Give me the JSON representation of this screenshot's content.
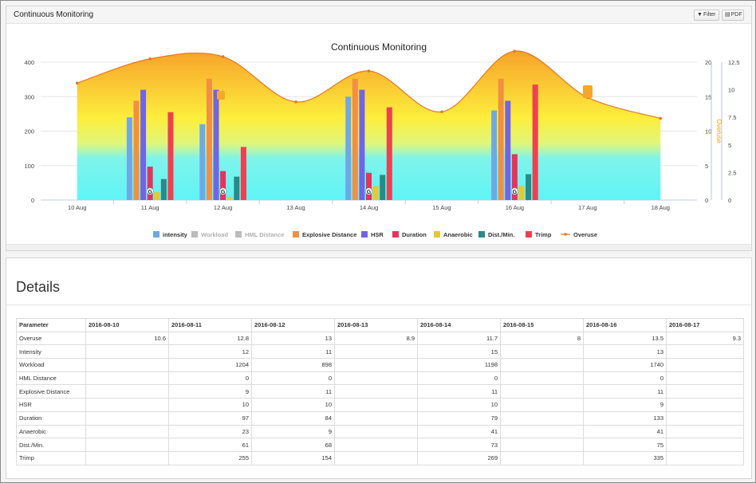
{
  "panel": {
    "title": "Continuous Monitoring",
    "filter_label": "Filter",
    "pdf_label": "PDF"
  },
  "chart_data": {
    "type": "bar",
    "title": "Continuous Monitoring",
    "categories": [
      "10 Aug",
      "11 Aug",
      "12 Aug",
      "13 Aug",
      "14 Aug",
      "15 Aug",
      "16 Aug",
      "17 Aug",
      "18 Aug"
    ],
    "ylim": [
      0,
      400
    ],
    "yticks": [
      0,
      100,
      200,
      300,
      400
    ],
    "y2lim": [
      0,
      20
    ],
    "y2ticks": [
      0,
      5,
      10,
      15,
      20
    ],
    "y3lim": [
      0,
      12.5
    ],
    "y3ticks": [
      "0",
      "2.5",
      "5",
      "7.5",
      "10",
      "12.5"
    ],
    "y3label": "Overuse",
    "series": [
      {
        "name": "intensity",
        "color": "#6fa8e6",
        "values": [
          null,
          240,
          220,
          null,
          300,
          null,
          260,
          null,
          null
        ]
      },
      {
        "name": "Workload",
        "color": "#bbbbbb",
        "hidden": true,
        "values": [
          null,
          1204,
          898,
          null,
          1198,
          null,
          1740,
          null,
          null
        ]
      },
      {
        "name": "HML Distance",
        "color": "#bbbbbb",
        "hidden": true,
        "values": [
          null,
          0,
          0,
          null,
          0,
          null,
          0,
          null,
          null
        ]
      },
      {
        "name": "Explosive Distance",
        "color": "#f28f43",
        "values": [
          null,
          288,
          352,
          null,
          352,
          null,
          352,
          null,
          null
        ]
      },
      {
        "name": "HSR",
        "color": "#7165e3",
        "values": [
          null,
          320,
          320,
          null,
          320,
          null,
          288,
          null,
          null
        ]
      },
      {
        "name": "Duration",
        "color": "#e8325b",
        "values": [
          null,
          97,
          84,
          null,
          79,
          null,
          133,
          null,
          null
        ]
      },
      {
        "name": "Anaerobic",
        "color": "#e6c92f",
        "values": [
          null,
          23,
          9,
          null,
          41,
          null,
          41,
          null,
          null
        ]
      },
      {
        "name": "Dist./Min.",
        "color": "#2b8a86",
        "values": [
          null,
          61,
          68,
          null,
          73,
          null,
          75,
          null,
          null
        ]
      },
      {
        "name": "Trimp",
        "color": "#ef4050",
        "values": [
          null,
          255,
          154,
          null,
          269,
          null,
          335,
          null,
          null
        ]
      },
      {
        "name": "Overuse",
        "color": "#e8781f",
        "type": "line",
        "values": [
          10.6,
          12.8,
          13,
          8.9,
          11.7,
          8,
          13.5,
          9.3,
          7.4
        ]
      }
    ],
    "annotations": [
      {
        "text": "G",
        "category": "11 Aug"
      },
      {
        "text": "G",
        "category": "12 Aug"
      },
      {
        "text": "G",
        "category": "14 Aug"
      },
      {
        "text": "G",
        "category": "16 Aug"
      }
    ],
    "legend_position": "bottom"
  },
  "details": {
    "title": "Details",
    "columns": [
      "Parameter",
      "2016-08-10",
      "2016-08-11",
      "2016-08-12",
      "2016-08-13",
      "2016-08-14",
      "2016-08-15",
      "2016-08-16",
      "2016-08-17"
    ],
    "rows": [
      [
        "Overuse",
        "10.6",
        "12.8",
        "13",
        "8.9",
        "11.7",
        "8",
        "13.5",
        "9.3"
      ],
      [
        "Intensity",
        "",
        "12",
        "11",
        "",
        "15",
        "",
        "13",
        ""
      ],
      [
        "Workload",
        "",
        "1204",
        "898",
        "",
        "1198",
        "",
        "1740",
        ""
      ],
      [
        "HML Distance",
        "",
        "0",
        "0",
        "",
        "0",
        "",
        "0",
        ""
      ],
      [
        "Explosive Distance",
        "",
        "9",
        "11",
        "",
        "11",
        "",
        "11",
        ""
      ],
      [
        "HSR",
        "",
        "10",
        "10",
        "",
        "10",
        "",
        "9",
        ""
      ],
      [
        "Duration",
        "",
        "97",
        "84",
        "",
        "79",
        "",
        "133",
        ""
      ],
      [
        "Anaerobic",
        "",
        "23",
        "9",
        "",
        "41",
        "",
        "41",
        ""
      ],
      [
        "Dist./Min.",
        "",
        "61",
        "68",
        "",
        "73",
        "",
        "75",
        ""
      ],
      [
        "Trimp",
        "",
        "255",
        "154",
        "",
        "269",
        "",
        "335",
        ""
      ]
    ]
  }
}
